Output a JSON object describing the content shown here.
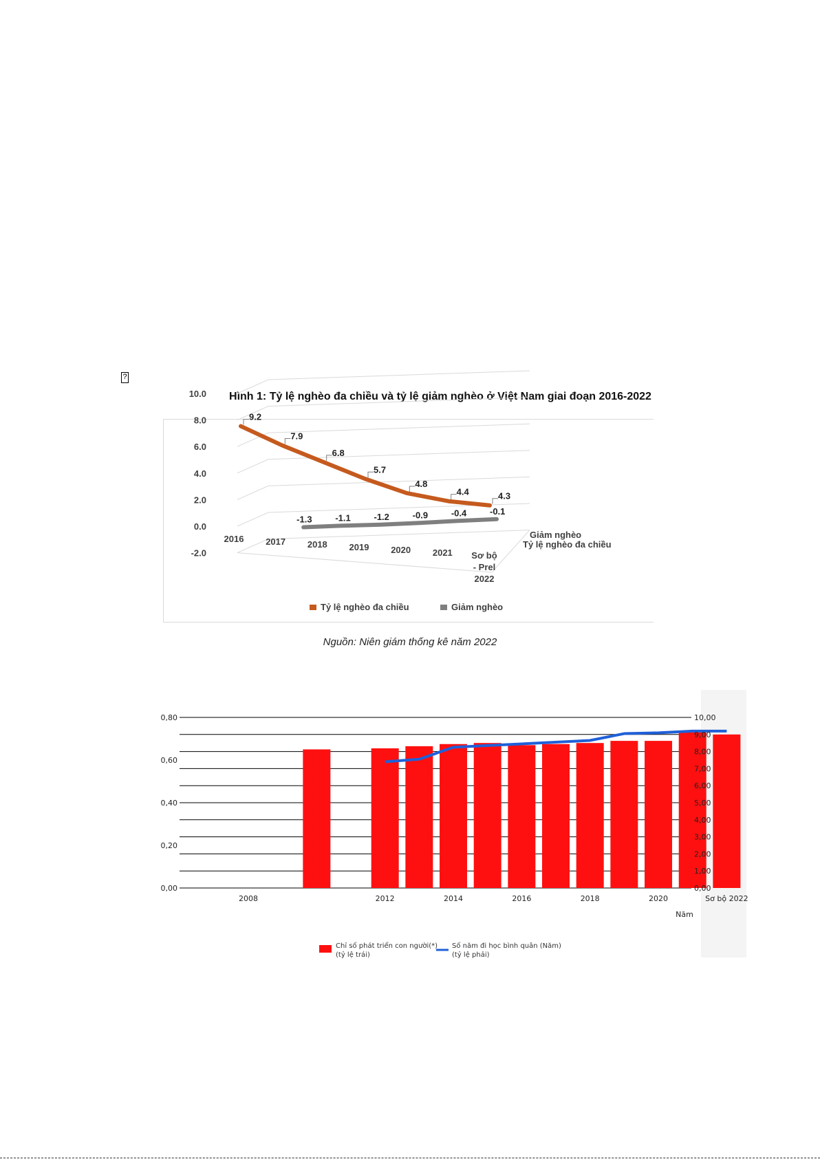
{
  "page": {
    "broken_image_glyph": "?",
    "figure1_title": "Hình 1: Tỷ lệ nghèo đa chiều và tỷ lệ giảm nghèo ở Việt Nam giai đoạn 2016-2022",
    "figure1_source": "Nguồn: Niên giám thống kê năm 2022"
  },
  "chart_data": [
    {
      "type": "line",
      "style": "3d-perspective",
      "categories": [
        "2016",
        "2017",
        "2018",
        "2019",
        "2020",
        "2021",
        "Sơ bộ - Prel 2022"
      ],
      "category_label_lines": [
        [
          "2016"
        ],
        [
          "2017"
        ],
        [
          "2018"
        ],
        [
          "2019"
        ],
        [
          "2020"
        ],
        [
          "2021"
        ],
        [
          "Sơ bộ",
          "- Prel",
          "2022"
        ]
      ],
      "series": [
        {
          "name": "Tỷ lệ nghèo đa chiều",
          "color": "#c55a1e",
          "values": [
            9.2,
            7.9,
            6.8,
            5.7,
            4.8,
            4.4,
            4.3
          ],
          "labels": [
            "9.2",
            "7.9",
            "6.8",
            "5.7",
            "4.8",
            "4.4",
            "4.3"
          ]
        },
        {
          "name": "Giảm nghèo",
          "color": "#7f7f7f",
          "values": [
            null,
            -1.3,
            -1.1,
            -1.2,
            -0.9,
            -0.4,
            -0.1
          ],
          "labels": [
            "",
            "-1.3",
            "-1.1",
            "-1.2",
            "-0.9",
            "-0.4",
            "-0.1"
          ]
        }
      ],
      "yticks": [
        "10.0",
        "8.0",
        "6.0",
        "4.0",
        "2.0",
        "0.0",
        "-2.0"
      ],
      "ylim": [
        -2,
        10
      ],
      "depth_axis_labels": [
        "Giảm nghèo",
        "Tỷ lệ nghèo đa chiều"
      ],
      "legend": {
        "position": "bottom",
        "entries": [
          "Tỷ lệ nghèo đa chiều",
          "Giảm nghèo"
        ]
      },
      "grid": true
    },
    {
      "type": "bar",
      "combo": "bar-line-dual-axis",
      "x_tick_labels": [
        "2008",
        "2012",
        "2014",
        "2016",
        "2018",
        "2020",
        "Sơ bộ 2022"
      ],
      "xlabel": "Năm",
      "bars": {
        "name": "Chỉ số phát triển con người(*)",
        "name_sub": "(tỷ lệ trái)",
        "color": "#ff1010",
        "x": [
          2010,
          2012,
          2013,
          2014,
          2015,
          2016,
          2017,
          2018,
          2019,
          2020,
          2021,
          2022
        ],
        "values": [
          0.65,
          0.655,
          0.665,
          0.675,
          0.68,
          0.67,
          0.675,
          0.68,
          0.69,
          0.69,
          0.73,
          0.72
        ]
      },
      "line": {
        "name": "Số năm đi học bình quân (Năm)",
        "name_sub": "(tỷ lệ phải)",
        "color": "#2060d8",
        "x": [
          2012,
          2013,
          2014,
          2015,
          2016,
          2017,
          2018,
          2019,
          2020,
          2021,
          2022
        ],
        "values": [
          7.4,
          7.55,
          8.25,
          8.35,
          8.45,
          8.55,
          8.65,
          9.05,
          9.1,
          9.2,
          9.2
        ]
      },
      "y_left": {
        "ylim": [
          0,
          0.8
        ],
        "ticks": [
          "0,00",
          "0,20",
          "0,40",
          "0,60",
          "0,80"
        ]
      },
      "y_right": {
        "ylim": [
          0,
          10
        ],
        "ticks": [
          "0,00",
          "1,00",
          "2,00",
          "3,00",
          "4,00",
          "5,00",
          "6,00",
          "7,00",
          "8,00",
          "9,00",
          "10,00"
        ]
      },
      "legend": {
        "position": "bottom"
      },
      "grid": true
    }
  ]
}
